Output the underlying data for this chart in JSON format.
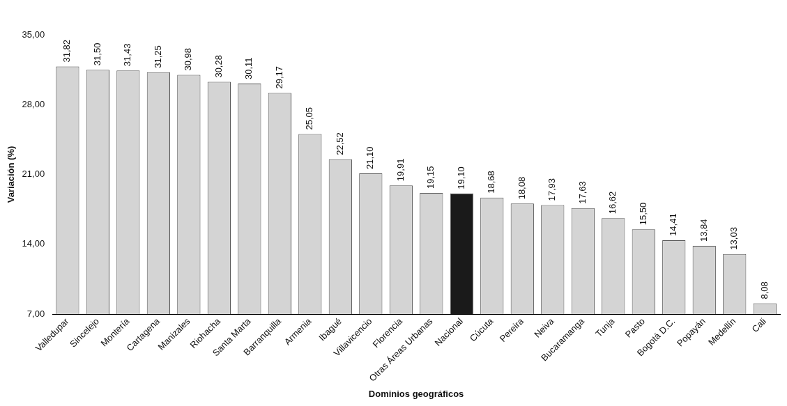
{
  "chart_data": {
    "type": "bar",
    "xlabel": "Dominios geográficos",
    "ylabel": "Variación (%)",
    "categories": [
      "Valledupar",
      "Sincelejo",
      "Montería",
      "Cartagena",
      "Manizales",
      "Riohacha",
      "Santa Marta",
      "Barranquilla",
      "Armenia",
      "Ibagué",
      "Villavicencio",
      "Florencia",
      "Otras Áreas Urbanas",
      "Nacional",
      "Cúcuta",
      "Pereira",
      "Neiva",
      "Bucaramanga",
      "Tunja",
      "Pasto",
      "Bogotá D.C.",
      "Popayán",
      "Medellín",
      "Cali"
    ],
    "values": [
      31.82,
      31.5,
      31.43,
      31.25,
      30.98,
      30.28,
      30.11,
      29.17,
      25.05,
      22.52,
      21.1,
      19.91,
      19.15,
      19.1,
      18.68,
      18.08,
      17.93,
      17.63,
      16.62,
      15.5,
      14.41,
      13.84,
      13.03,
      8.08
    ],
    "value_labels": [
      "31,82",
      "31,50",
      "31,43",
      "31,25",
      "30,98",
      "30,28",
      "30,11",
      "29,17",
      "25,05",
      "22,52",
      "21,10",
      "19,91",
      "19,15",
      "19,10",
      "18,68",
      "18,08",
      "17,93",
      "17,63",
      "16,62",
      "15,50",
      "14,41",
      "13,84",
      "13,03",
      "8,08"
    ],
    "colors": [
      "#d4d4d4",
      "#d4d4d4",
      "#d4d4d4",
      "#d4d4d4",
      "#d4d4d4",
      "#d4d4d4",
      "#d4d4d4",
      "#d4d4d4",
      "#d4d4d4",
      "#d4d4d4",
      "#d4d4d4",
      "#d4d4d4",
      "#d4d4d4",
      "#1a1a1a",
      "#d4d4d4",
      "#d4d4d4",
      "#d4d4d4",
      "#d4d4d4",
      "#d4d4d4",
      "#d4d4d4",
      "#d4d4d4",
      "#d4d4d4",
      "#d4d4d4",
      "#d4d4d4"
    ],
    "ylim": [
      7,
      35
    ],
    "yticks": [
      {
        "value": 7,
        "label": "7,00"
      },
      {
        "value": 14,
        "label": "14,00"
      },
      {
        "value": 21,
        "label": "21,00"
      },
      {
        "value": 28,
        "label": "28,00"
      },
      {
        "value": 35,
        "label": "35,00"
      }
    ],
    "grid": false,
    "legend": false
  }
}
